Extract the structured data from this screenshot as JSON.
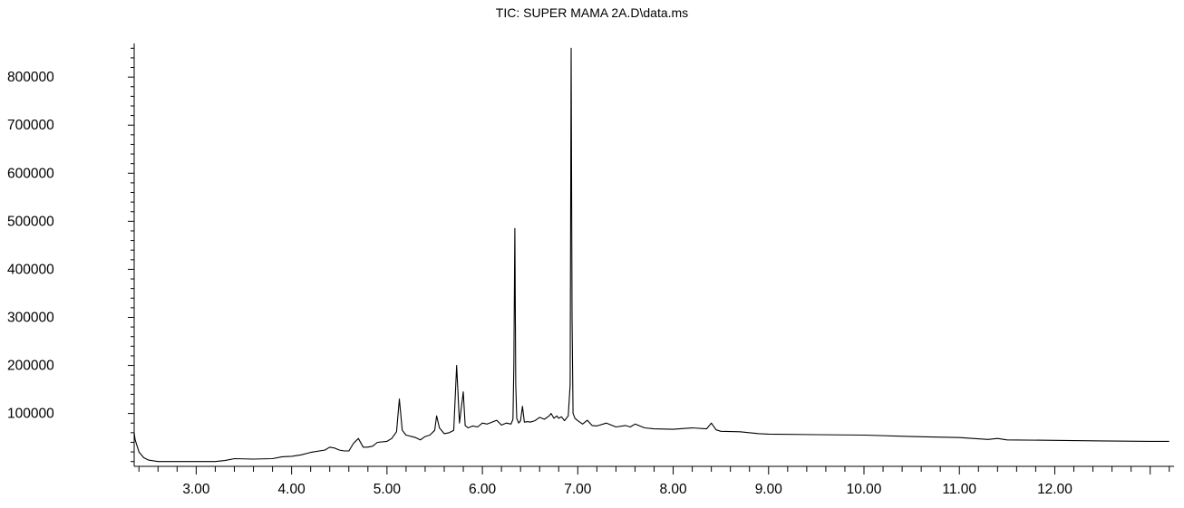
{
  "chart_data": {
    "type": "line",
    "title": "TIC: SUPER MAMA 2A.D\\data.ms",
    "xlabel": "",
    "ylabel": "",
    "xlim": [
      2.35,
      13.25
    ],
    "ylim": [
      -10000,
      870000
    ],
    "x_ticks": [
      "3.00",
      "4.00",
      "5.00",
      "6.00",
      "7.00",
      "8.00",
      "9.00",
      "10.00",
      "11.00",
      "12.00"
    ],
    "y_ticks": [
      "100000",
      "200000",
      "300000",
      "400000",
      "500000",
      "600000",
      "700000",
      "800000"
    ],
    "grid": false,
    "line_color": "#000000",
    "series": [
      {
        "x": [
          2.35,
          2.36,
          2.4,
          2.45,
          2.5,
          2.6,
          2.8,
          3.0,
          3.2,
          3.3,
          3.4,
          3.6,
          3.8,
          3.9,
          4.0,
          4.1,
          4.2,
          4.35,
          4.4,
          4.45,
          4.5,
          4.55,
          4.6,
          4.65,
          4.7,
          4.75,
          4.8,
          4.85,
          4.9,
          5.0,
          5.05,
          5.1,
          5.13,
          5.16,
          5.2,
          5.3,
          5.35,
          5.4,
          5.45,
          5.5,
          5.52,
          5.55,
          5.6,
          5.65,
          5.7,
          5.73,
          5.76,
          5.8,
          5.82,
          5.85,
          5.9,
          5.95,
          6.0,
          6.05,
          6.1,
          6.15,
          6.2,
          6.25,
          6.3,
          6.32,
          6.33,
          6.34,
          6.35,
          6.36,
          6.38,
          6.4,
          6.42,
          6.44,
          6.48,
          6.5,
          6.55,
          6.6,
          6.65,
          6.7,
          6.72,
          6.75,
          6.78,
          6.8,
          6.83,
          6.86,
          6.9,
          6.92,
          6.93,
          6.94,
          6.95,
          6.97,
          7.0,
          7.05,
          7.1,
          7.15,
          7.2,
          7.3,
          7.4,
          7.5,
          7.55,
          7.6,
          7.7,
          7.8,
          8.0,
          8.2,
          8.35,
          8.4,
          8.45,
          8.5,
          8.7,
          8.9,
          9.0,
          9.5,
          10.0,
          10.5,
          11.0,
          11.3,
          11.4,
          11.5,
          12.0,
          12.5,
          13.0,
          13.2
        ],
        "y": [
          60000,
          45000,
          20000,
          8000,
          3000,
          0,
          0,
          0,
          0,
          2000,
          6000,
          5000,
          6000,
          10000,
          11000,
          14000,
          19000,
          24000,
          30000,
          28000,
          24000,
          22000,
          22000,
          38000,
          48000,
          30000,
          30000,
          32000,
          40000,
          42000,
          48000,
          62000,
          130000,
          65000,
          55000,
          50000,
          45000,
          52000,
          55000,
          65000,
          95000,
          70000,
          58000,
          60000,
          65000,
          200000,
          80000,
          145000,
          75000,
          70000,
          74000,
          72000,
          80000,
          78000,
          82000,
          86000,
          76000,
          80000,
          78000,
          88000,
          200000,
          485000,
          160000,
          90000,
          80000,
          85000,
          115000,
          82000,
          83000,
          82000,
          85000,
          92000,
          88000,
          95000,
          100000,
          90000,
          95000,
          90000,
          93000,
          85000,
          95000,
          160000,
          860000,
          300000,
          100000,
          90000,
          85000,
          78000,
          86000,
          75000,
          74000,
          80000,
          72000,
          75000,
          72000,
          78000,
          70000,
          68000,
          67000,
          70000,
          68000,
          80000,
          66000,
          63000,
          62000,
          58000,
          57000,
          56000,
          55000,
          52000,
          50000,
          46000,
          48000,
          45000,
          44000,
          43000,
          42000,
          42000
        ]
      }
    ]
  }
}
